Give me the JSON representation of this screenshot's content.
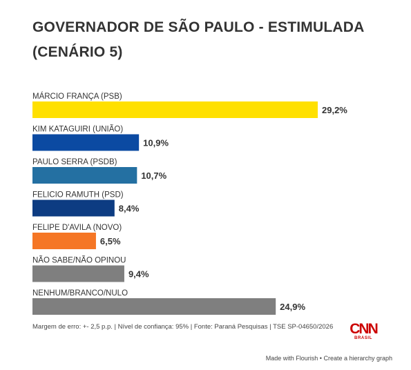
{
  "chart_data": {
    "type": "bar",
    "orientation": "horizontal",
    "title": "GOVERNADOR DE SÃO PAULO - ESTIMULADA (CENÁRIO 5)",
    "categories": [
      "MÁRCIO FRANÇA (PSB)",
      "KIM KATAGUIRI (UNIÃO)",
      "PAULO SERRA (PSDB)",
      "FELICIO RAMUTH (PSD)",
      "FELIPE D'AVILA (NOVO)",
      "NÃO SABE/NÃO OPINOU",
      "NENHUM/BRANCO/NULO"
    ],
    "values": [
      29.2,
      10.9,
      10.7,
      8.4,
      6.5,
      9.4,
      24.9
    ],
    "value_labels": [
      "29,2%",
      "10,9%",
      "10,7%",
      "8,4%",
      "6,5%",
      "9,4%",
      "24,9%"
    ],
    "colors": [
      "#ffe000",
      "#0b4aa2",
      "#2470a2",
      "#0d3c82",
      "#f57625",
      "#7f7f7f",
      "#7f7f7f"
    ],
    "xlim": [
      0,
      29.2
    ],
    "xlabel": "",
    "ylabel": "",
    "grid": false,
    "legend": "none"
  },
  "footer": {
    "note": "Margem de erro: +- 2,5 p.p. | Nível de confiança: 95% | Fonte: Paraná Pesquisas | TSE SP-04650/2026",
    "brand_logo": "CNN",
    "brand_sub": "BRASIL",
    "credit": "Made with Flourish • Create a hierarchy graph"
  }
}
